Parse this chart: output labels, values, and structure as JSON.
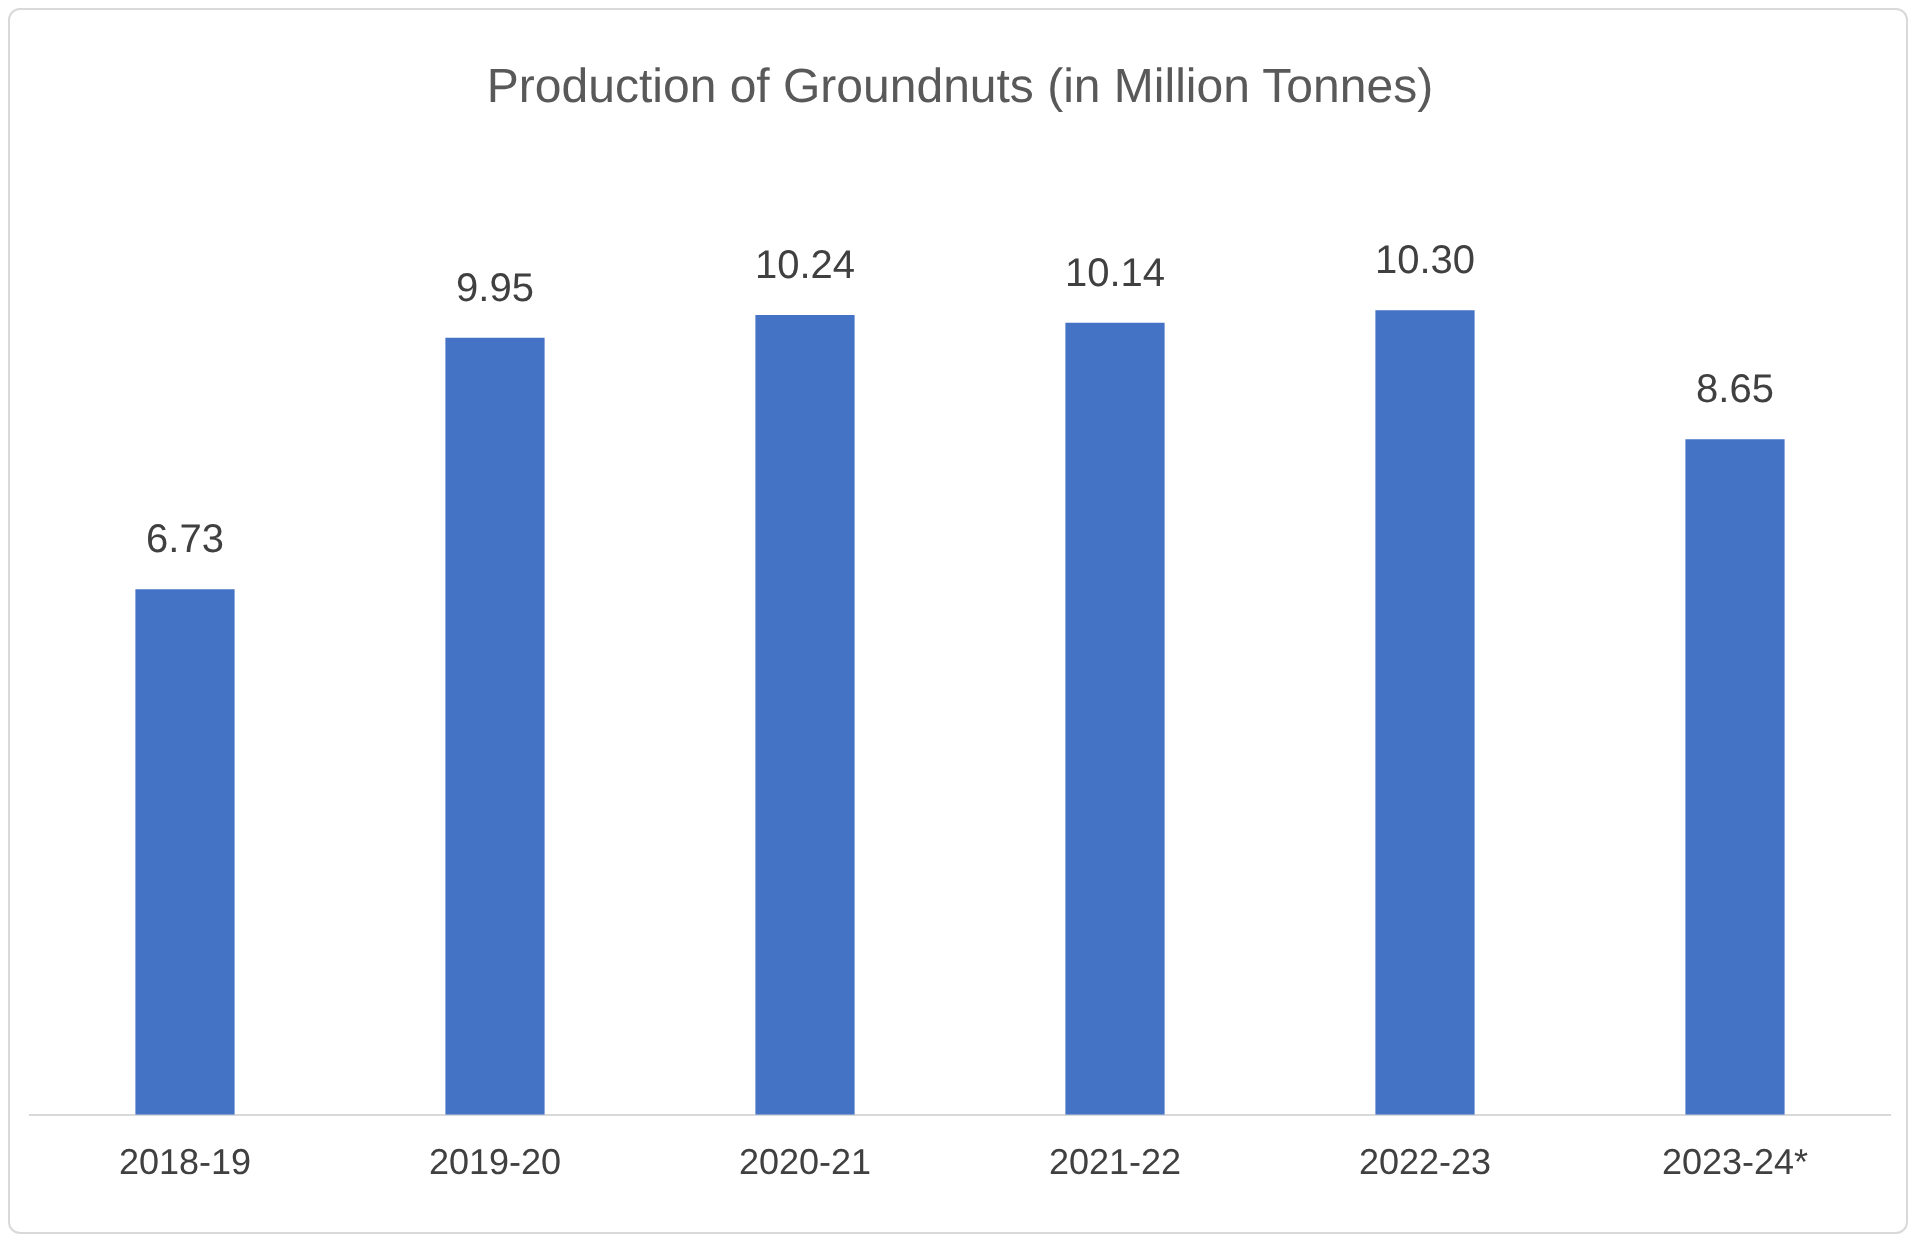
{
  "chart_data": {
    "type": "bar",
    "title": "Production of Groundnuts (in Million Tonnes)",
    "categories": [
      "2018-19",
      "2019-20",
      "2020-21",
      "2021-22",
      "2022-23",
      "2023-24*"
    ],
    "values": [
      6.73,
      9.95,
      10.24,
      10.14,
      10.3,
      8.65
    ],
    "value_labels": [
      "6.73",
      "9.95",
      "10.24",
      "10.14",
      "10.30",
      "8.65"
    ],
    "color": "#4472c4",
    "grid": false,
    "legend": false
  }
}
